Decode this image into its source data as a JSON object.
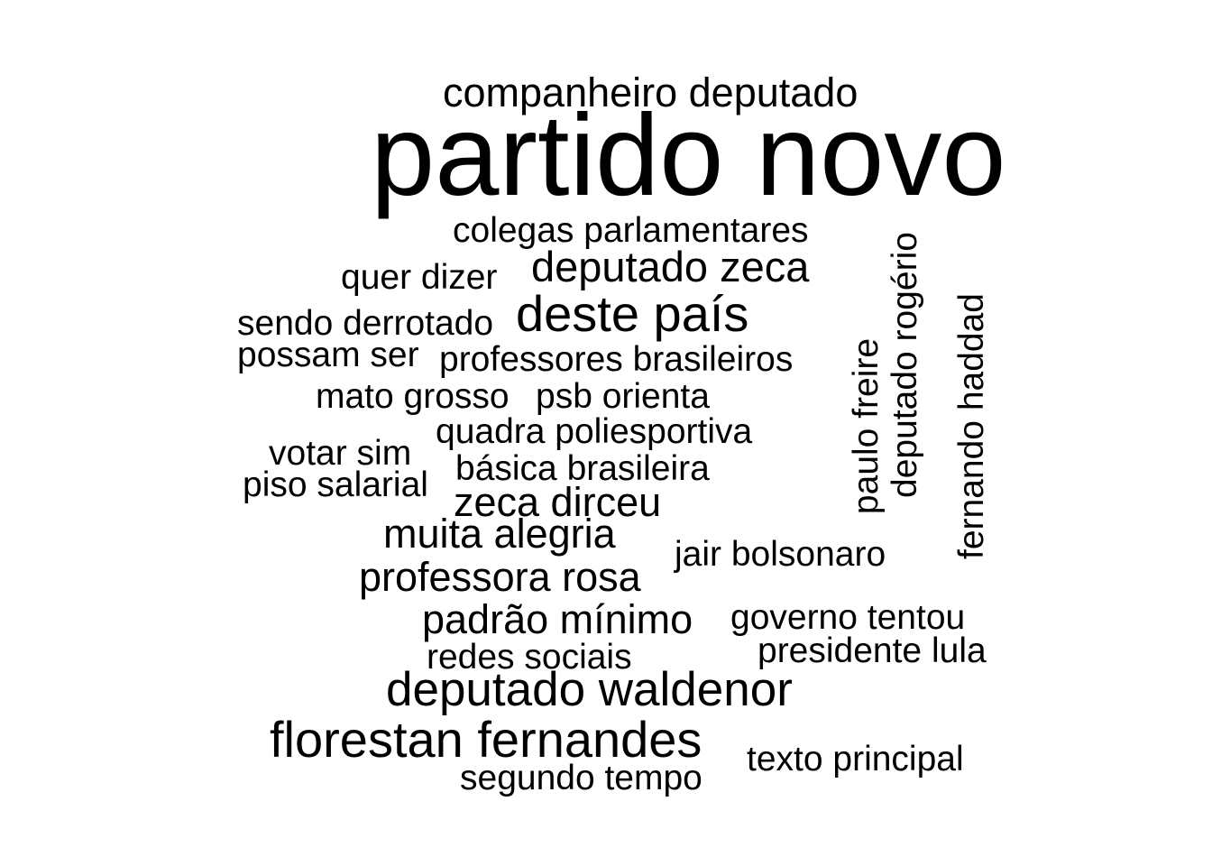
{
  "text_color": "#000000",
  "background_color": "#ffffff",
  "words": [
    {
      "id": "partido-novo",
      "text": "partido novo"
    },
    {
      "id": "companheiro-deputado",
      "text": "companheiro deputado"
    },
    {
      "id": "colegas-parlamentares",
      "text": "colegas parlamentares"
    },
    {
      "id": "quer-dizer",
      "text": "quer dizer"
    },
    {
      "id": "deputado-zeca",
      "text": "deputado zeca"
    },
    {
      "id": "sendo-derrotado",
      "text": "sendo derrotado"
    },
    {
      "id": "deste-pais",
      "text": "deste país"
    },
    {
      "id": "possam-ser",
      "text": "possam ser"
    },
    {
      "id": "professores-brasileiros",
      "text": "professores brasileiros"
    },
    {
      "id": "mato-grosso",
      "text": "mato grosso"
    },
    {
      "id": "psb-orienta",
      "text": "psb orienta"
    },
    {
      "id": "quadra-poliesportiva",
      "text": "quadra poliesportiva"
    },
    {
      "id": "votar-sim",
      "text": "votar sim"
    },
    {
      "id": "basica-brasileira",
      "text": "básica brasileira"
    },
    {
      "id": "piso-salarial",
      "text": "piso salarial"
    },
    {
      "id": "zeca-dirceu",
      "text": "zeca dirceu"
    },
    {
      "id": "muita-alegria",
      "text": "muita alegria"
    },
    {
      "id": "jair-bolsonaro",
      "text": "jair bolsonaro"
    },
    {
      "id": "professora-rosa",
      "text": "professora rosa"
    },
    {
      "id": "padrao-minimo",
      "text": "padrão mínimo"
    },
    {
      "id": "governo-tentou",
      "text": "governo tentou"
    },
    {
      "id": "redes-sociais",
      "text": "redes sociais"
    },
    {
      "id": "presidente-lula",
      "text": "presidente lula"
    },
    {
      "id": "deputado-waldenor",
      "text": "deputado waldenor"
    },
    {
      "id": "florestan-fernandes",
      "text": "florestan fernandes"
    },
    {
      "id": "texto-principal",
      "text": "texto principal"
    },
    {
      "id": "segundo-tempo",
      "text": "segundo tempo"
    },
    {
      "id": "paulo-freire",
      "text": "paulo freire"
    },
    {
      "id": "deputado-rogerio",
      "text": "deputado rogério"
    },
    {
      "id": "fernando-haddad",
      "text": "fernando haddad"
    }
  ]
}
